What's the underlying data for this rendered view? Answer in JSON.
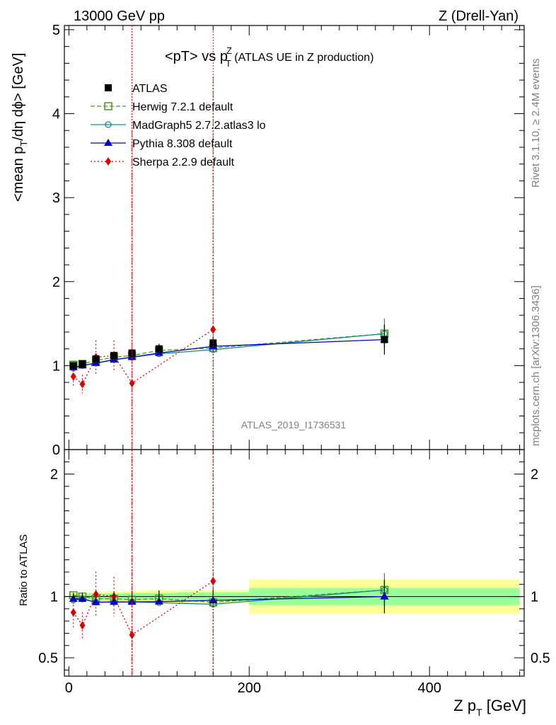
{
  "header": {
    "left": "13000 GeV pp",
    "right": "Z (Drell-Yan)"
  },
  "title": {
    "main": "<pT> vs p",
    "sup": "Z",
    "sub": "T",
    "extra": " (ATLAS UE in Z production)"
  },
  "side_labels": {
    "rivet": "Rivet 3.1.10, ≥ 2.4M events",
    "mcplots": "mcplots.cern.ch [arXiv:1306.3436]"
  },
  "analysis_id": "ATLAS_2019_I1736531",
  "ylabel_main": {
    "a": "<mean p",
    "sub": "T",
    "b": "/dη dϕ> [GeV]"
  },
  "ylabel_ratio": "Ratio to ATLAS",
  "xlabel": {
    "a": "Z p",
    "sub": "T",
    "b": " [GeV]"
  },
  "legend": [
    {
      "label": "ATLAS",
      "color": "#000000",
      "marker": "filled-square",
      "line": "none"
    },
    {
      "label": "Herwig 7.2.1 default",
      "color": "#4c9a1b",
      "marker": "open-square",
      "line": "dashed"
    },
    {
      "label": "MadGraph5 2.7.2.atlas3 lo",
      "color": "#138a8a",
      "marker": "open-circle",
      "line": "solid"
    },
    {
      "label": "Pythia 8.308 default",
      "color": "#0000cc",
      "marker": "filled-triangle",
      "line": "solid"
    },
    {
      "label": "Sherpa 2.2.9 default",
      "color": "#dd0000",
      "marker": "filled-diamond",
      "line": "dotted"
    }
  ],
  "chart_data": {
    "type": "line",
    "x": [
      5,
      15,
      30,
      50,
      70,
      100,
      160,
      350
    ],
    "xlim": [
      -5,
      505
    ],
    "xticks": [
      0,
      200,
      400
    ],
    "main": {
      "ylim": [
        0,
        5.05
      ],
      "yticks": [
        0,
        1,
        2,
        3,
        4,
        5
      ]
    },
    "ratio": {
      "ylim": [
        0.35,
        2.2
      ],
      "yticks": [
        0.5,
        1,
        2
      ],
      "band_edges": [
        0,
        10,
        20,
        40,
        60,
        80,
        120,
        200,
        500
      ],
      "band_inner": [
        0.02,
        0.02,
        0.025,
        0.025,
        0.03,
        0.03,
        0.035,
        0.07
      ],
      "band_outer": [
        0.03,
        0.03,
        0.035,
        0.04,
        0.045,
        0.05,
        0.055,
        0.14
      ]
    },
    "series": [
      {
        "name": "ATLAS",
        "values": [
          1.0,
          1.02,
          1.08,
          1.12,
          1.15,
          1.2,
          1.27,
          1.31
        ],
        "err": [
          0.03,
          0.03,
          0.04,
          0.04,
          0.05,
          0.06,
          0.07,
          0.18
        ]
      },
      {
        "name": "Herwig 7.2.1 default",
        "values": [
          1.01,
          1.02,
          1.06,
          1.1,
          1.12,
          1.18,
          1.21,
          1.38
        ],
        "err": [
          0.01,
          0.01,
          0.01,
          0.01,
          0.01,
          0.01,
          0.02,
          0.1
        ]
      },
      {
        "name": "MadGraph5 2.7.2.atlas3 lo",
        "values": [
          0.97,
          1.0,
          1.03,
          1.07,
          1.1,
          1.14,
          1.19,
          1.38
        ],
        "err": [
          0.01,
          0.01,
          0.01,
          0.01,
          0.01,
          0.01,
          0.02,
          0.18
        ]
      },
      {
        "name": "Pythia 8.308 default",
        "values": [
          0.98,
          1.0,
          1.03,
          1.07,
          1.1,
          1.15,
          1.23,
          1.31
        ],
        "err": [
          0.01,
          0.01,
          0.01,
          0.01,
          0.01,
          0.01,
          0.02,
          0.1
        ]
      },
      {
        "name": "Sherpa 2.2.9 default",
        "values": [
          0.87,
          0.78,
          1.1,
          1.12,
          0.79,
          null,
          1.43,
          null
        ],
        "err": [
          0.12,
          0.11,
          0.2,
          0.18,
          3.0,
          null,
          3.0,
          null
        ]
      }
    ]
  }
}
